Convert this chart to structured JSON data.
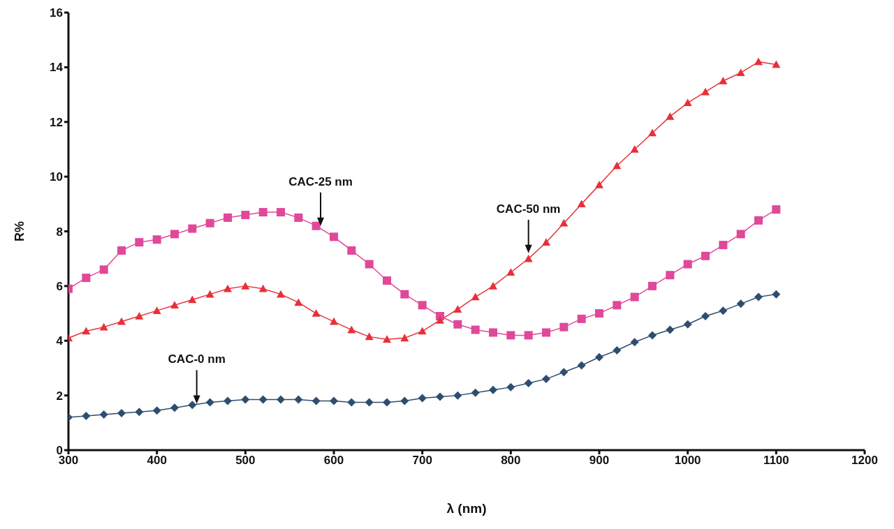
{
  "chart_data": {
    "type": "line",
    "xlabel": "λ (nm)",
    "ylabel": "R%",
    "x": [
      300,
      320,
      340,
      360,
      380,
      400,
      420,
      440,
      460,
      480,
      500,
      520,
      540,
      560,
      580,
      600,
      620,
      640,
      660,
      680,
      700,
      720,
      740,
      760,
      780,
      800,
      820,
      840,
      860,
      880,
      900,
      920,
      940,
      960,
      980,
      1000,
      1020,
      1040,
      1060,
      1080,
      1100
    ],
    "series": [
      {
        "color": "#2e4e6e",
        "marker": "diamond",
        "values": [
          1.2,
          1.25,
          1.3,
          1.35,
          1.4,
          1.45,
          1.55,
          1.65,
          1.75,
          1.8,
          1.85,
          1.85,
          1.85,
          1.85,
          1.8,
          1.8,
          1.75,
          1.75,
          1.75,
          1.8,
          1.9,
          1.95,
          2.0,
          2.1,
          2.2,
          2.3,
          2.45,
          2.6,
          2.85,
          3.1,
          3.4,
          3.65,
          3.95,
          4.2,
          4.4,
          4.6,
          4.9,
          5.1,
          5.35,
          5.6,
          5.7
        ]
      },
      {
        "color": "#e0489a",
        "marker": "square",
        "values": [
          5.9,
          6.3,
          6.6,
          7.3,
          7.6,
          7.7,
          7.9,
          8.1,
          8.3,
          8.5,
          8.6,
          8.7,
          8.7,
          8.5,
          8.2,
          7.8,
          7.3,
          6.8,
          6.2,
          5.7,
          5.3,
          4.9,
          4.6,
          4.4,
          4.3,
          4.2,
          4.2,
          4.3,
          4.5,
          4.8,
          5.0,
          5.3,
          5.6,
          6.0,
          6.4,
          6.8,
          7.1,
          7.5,
          7.9,
          8.4,
          8.8
        ]
      },
      {
        "color": "#e8303a",
        "marker": "triangle",
        "values": [
          4.1,
          4.35,
          4.5,
          4.7,
          4.9,
          5.1,
          5.3,
          5.5,
          5.7,
          5.9,
          6.0,
          5.9,
          5.7,
          5.4,
          5.0,
          4.7,
          4.4,
          4.15,
          4.05,
          4.1,
          4.35,
          4.75,
          5.15,
          5.6,
          6.0,
          6.5,
          7.0,
          7.6,
          8.3,
          9.0,
          9.7,
          10.4,
          11.0,
          11.6,
          12.2,
          12.7,
          13.1,
          13.5,
          13.8,
          14.2,
          14.1
        ]
      }
    ],
    "annotations": [
      {
        "text": "CAC-0 nm",
        "x": 445,
        "y": 1.7
      },
      {
        "text": "CAC-25 nm",
        "x": 585,
        "y": 8.2
      },
      {
        "text": "CAC-50 nm",
        "x": 820,
        "y": 7.2
      }
    ],
    "xlim": [
      300,
      1200
    ],
    "xticks": [
      300,
      400,
      500,
      600,
      700,
      800,
      900,
      1000,
      1100,
      1200
    ],
    "ylim": [
      0,
      16
    ],
    "yticks": [
      0,
      2,
      4,
      6,
      8,
      10,
      12,
      14,
      16
    ],
    "grid": false,
    "legend": false
  }
}
